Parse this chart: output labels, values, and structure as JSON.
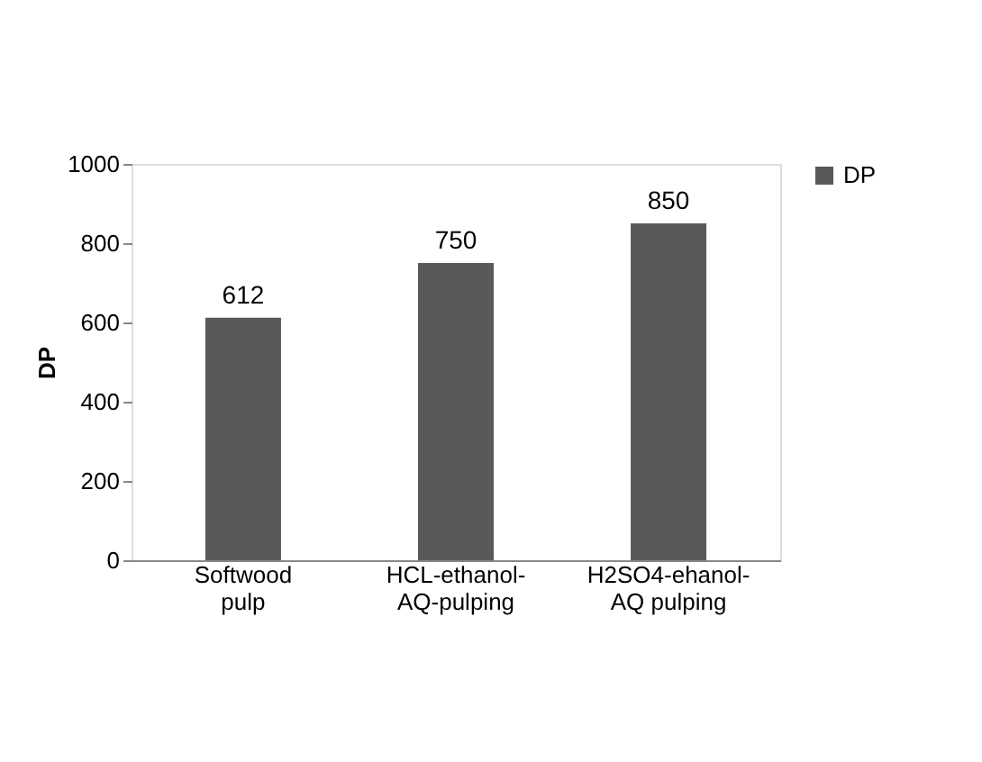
{
  "chart_data": {
    "type": "bar",
    "ylabel": "DP",
    "categories": [
      "Softwood pulp",
      "HCL-ethanol-AQ-pulping",
      "H2SO4-ehanol-AQ pulping"
    ],
    "series": [
      {
        "name": "DP",
        "color": "#595959",
        "values": [
          612,
          750,
          850
        ]
      }
    ],
    "ylim": [
      0,
      1000
    ],
    "yticks": [
      0,
      200,
      400,
      600,
      800,
      1000
    ],
    "grid": false,
    "legend": "right",
    "data_labels": true
  }
}
